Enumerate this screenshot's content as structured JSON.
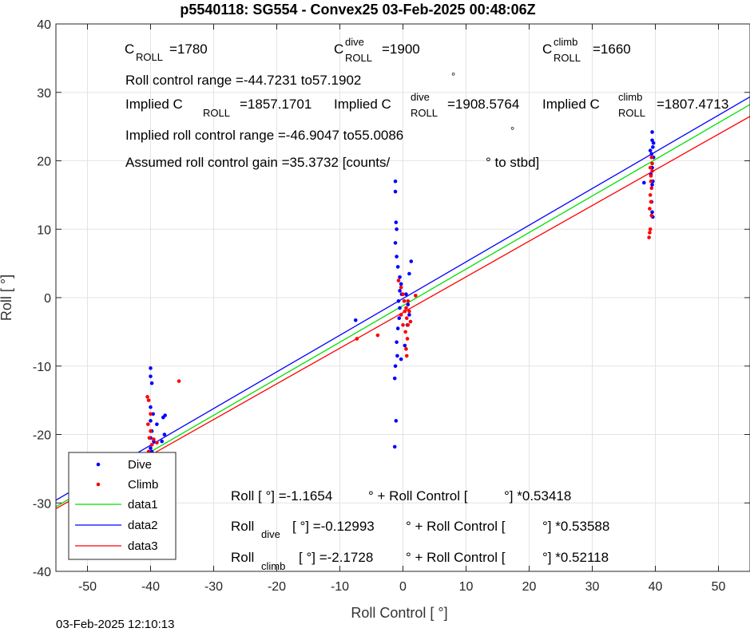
{
  "chart_data": {
    "type": "scatter",
    "title": "p5540118: SG554 - Convex25 03-Feb-2025 00:48:06Z",
    "xlabel": "Roll Control [   °]",
    "ylabel": "Roll [  °]",
    "xlim": [
      -55,
      55
    ],
    "ylim": [
      -40,
      40
    ],
    "xticks": [
      -50,
      -40,
      -30,
      -20,
      -10,
      0,
      10,
      20,
      30,
      40,
      50
    ],
    "yticks": [
      -40,
      -30,
      -20,
      -10,
      0,
      10,
      20,
      30,
      40
    ],
    "grid": true,
    "legend_position": "bottom-left",
    "legend": [
      "Dive",
      "Climb",
      "data1",
      "data2",
      "data3"
    ],
    "colors": {
      "dive": "#0000ff",
      "climb": "#ff0000",
      "data1": "#00e000",
      "data2": "#0000ff",
      "data3": "#ff0000"
    },
    "series": [
      {
        "name": "Dive",
        "kind": "points",
        "color": "#0000ff",
        "points": [
          [
            -48,
            -24.5
          ],
          [
            -40,
            -10.3
          ],
          [
            -40,
            -11.5
          ],
          [
            -39.8,
            -12.5
          ],
          [
            -40,
            -16
          ],
          [
            -39.6,
            -17
          ],
          [
            -40,
            -18
          ],
          [
            -39.8,
            -19.5
          ],
          [
            -40,
            -20.5
          ],
          [
            -39.5,
            -21
          ],
          [
            -40,
            -22
          ],
          [
            -39.8,
            -22.5
          ],
          [
            -40.2,
            -23.5
          ],
          [
            -39.6,
            -23
          ],
          [
            -38,
            -17.5
          ],
          [
            -37.7,
            -17.2
          ],
          [
            -37.8,
            -20
          ],
          [
            -38.2,
            -21
          ],
          [
            -39,
            -18.5
          ],
          [
            -7.5,
            -3.3
          ],
          [
            -1.2,
            17
          ],
          [
            -1.2,
            15.5
          ],
          [
            -1.1,
            11
          ],
          [
            -1.0,
            10
          ],
          [
            -1.2,
            8
          ],
          [
            -1.0,
            6
          ],
          [
            -0.8,
            4.5
          ],
          [
            -0.5,
            3
          ],
          [
            -0.3,
            2
          ],
          [
            -0.5,
            1
          ],
          [
            -0.2,
            0.5
          ],
          [
            -0.7,
            -0.5
          ],
          [
            -0.5,
            -1.5
          ],
          [
            -0.6,
            -3
          ],
          [
            -0.8,
            -4.5
          ],
          [
            -1.0,
            -6.5
          ],
          [
            -0.9,
            -8.5
          ],
          [
            -1.2,
            -10
          ],
          [
            -1.3,
            -11.8
          ],
          [
            -1.1,
            -18
          ],
          [
            -1.3,
            -21.8
          ],
          [
            1.3,
            5.3
          ],
          [
            1.0,
            3.5
          ],
          [
            0.5,
            0.5
          ],
          [
            0.8,
            -1
          ],
          [
            1.0,
            -2.5
          ],
          [
            0.7,
            -4
          ],
          [
            0.3,
            -7
          ],
          [
            -0.3,
            -9
          ],
          [
            39.5,
            24.2
          ],
          [
            39.5,
            23
          ],
          [
            39.6,
            22
          ],
          [
            39.4,
            21
          ],
          [
            39.7,
            20.5
          ],
          [
            39.5,
            19
          ],
          [
            39.3,
            18
          ],
          [
            39.6,
            17
          ],
          [
            39.5,
            16.5
          ],
          [
            39.4,
            14
          ],
          [
            39.5,
            12.5
          ],
          [
            39.6,
            11.8
          ],
          [
            38.2,
            16.8
          ],
          [
            39.2,
            21.5
          ],
          [
            39.7,
            22.6
          ]
        ]
      },
      {
        "name": "Climb",
        "kind": "points",
        "color": "#ff0000",
        "points": [
          [
            -48,
            -27.5
          ],
          [
            -40.5,
            -14.5
          ],
          [
            -40.3,
            -15
          ],
          [
            -40,
            -17
          ],
          [
            -40.4,
            -18.5
          ],
          [
            -40,
            -19.5
          ],
          [
            -40.2,
            -20.5
          ],
          [
            -39.8,
            -21.5
          ],
          [
            -40.3,
            -22.5
          ],
          [
            -40,
            -23
          ],
          [
            -39.7,
            -24
          ],
          [
            -40.1,
            -24.8
          ],
          [
            -39.5,
            -20.7
          ],
          [
            -38.6,
            -26
          ],
          [
            -38.6,
            -27.5
          ],
          [
            -35.5,
            -12.2
          ],
          [
            -39,
            -21.2
          ],
          [
            -7.3,
            -6
          ],
          [
            -4,
            -5.5
          ],
          [
            -0.7,
            2.5
          ],
          [
            -0.3,
            1.5
          ],
          [
            0,
            0.5
          ],
          [
            0.2,
            -0.5
          ],
          [
            0.5,
            -1.5
          ],
          [
            0.3,
            -2
          ],
          [
            0.6,
            -3
          ],
          [
            0.8,
            -4
          ],
          [
            0.4,
            -5
          ],
          [
            0.7,
            -6
          ],
          [
            0.5,
            -7.5
          ],
          [
            0.6,
            -8.5
          ],
          [
            1.0,
            -2
          ],
          [
            1.2,
            -3.5
          ],
          [
            -0.3,
            -2.5
          ],
          [
            0,
            -4
          ],
          [
            0.8,
            -0.5
          ],
          [
            2,
            0.3
          ],
          [
            39.4,
            20.5
          ],
          [
            39.2,
            19
          ],
          [
            39.5,
            18.5
          ],
          [
            39.3,
            17
          ],
          [
            39.4,
            16
          ],
          [
            39.2,
            15
          ],
          [
            39.3,
            14
          ],
          [
            39.1,
            13
          ],
          [
            39.4,
            12
          ],
          [
            39.2,
            10
          ],
          [
            39.1,
            9.5
          ],
          [
            39.0,
            8.8
          ],
          [
            39.5,
            19.6
          ],
          [
            39.3,
            17.8
          ]
        ]
      },
      {
        "name": "data1",
        "kind": "line",
        "color": "#00e000",
        "intercept": -1.1654,
        "slope": 0.53418
      },
      {
        "name": "data2",
        "kind": "line",
        "color": "#0000ff",
        "intercept": -0.12993,
        "slope": 0.53588
      },
      {
        "name": "data3",
        "kind": "line",
        "color": "#ff0000",
        "intercept": -2.1728,
        "slope": 0.52118
      }
    ],
    "annotations": {
      "c_roll": {
        "main": "C",
        "sub": "ROLL",
        "value": "=1780"
      },
      "c_roll_dive": {
        "main": "C",
        "sup": "dive",
        "sub": "ROLL",
        "value": "=1900"
      },
      "c_roll_climb": {
        "main": "C",
        "sup": "climb",
        "sub": "ROLL",
        "value": "=1660"
      },
      "roll_control_range": "Roll control range =-44.7231 to57.1902",
      "implied_label": "Implied C",
      "implied_sub": "ROLL",
      "implied_c_roll": "=1857.1701",
      "implied_dive_sup": "dive",
      "implied_c_roll_dive": "=1908.5764",
      "implied_climb_sup": "climb",
      "implied_c_roll_climb": "=1807.4713",
      "implied_range": "Implied roll control range =-46.9047 to55.0086",
      "gain": "Assumed roll control gain =35.3732 [counts/",
      "gain_unit": "° to stbd]",
      "deg": "°",
      "fit_all_a": "Roll [  °] =-1.1654",
      "fit_all_b": "° + Roll Control [",
      "fit_all_c": "°] *0.53418",
      "fit_dive_main": "Roll",
      "fit_dive_sub": "dive",
      "fit_dive_a": "[  °] =-0.12993",
      "fit_dive_b": "° + Roll Control [",
      "fit_dive_c": "°] *0.53588",
      "fit_climb_main": "Roll",
      "fit_climb_sub": "climb",
      "fit_climb_a": "[  °] =-2.1728",
      "fit_climb_b": "° + Roll Control [",
      "fit_climb_c": "°] *0.52118"
    }
  },
  "timestamp": "03-Feb-2025 12:10:13"
}
